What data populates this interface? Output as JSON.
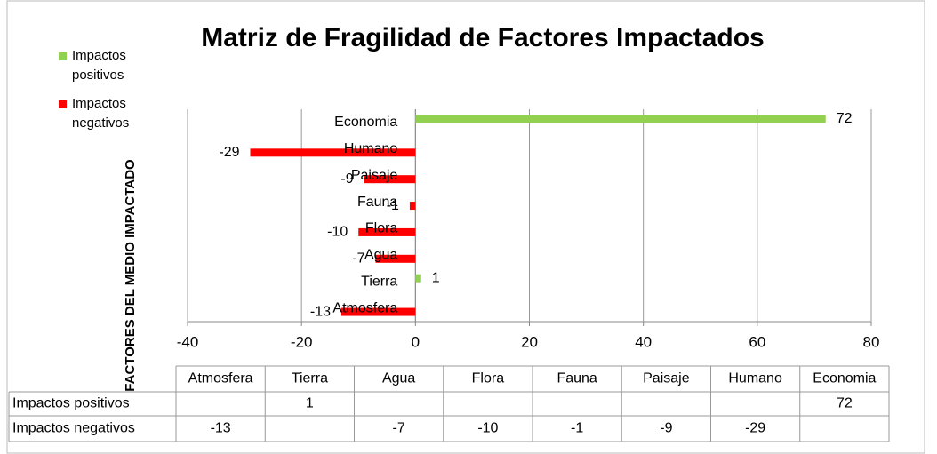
{
  "chart_data": {
    "type": "hbar",
    "title": "Matriz de Fragilidad de Factores Impactados",
    "ylabel": "FACTORES DEL MEDIO IMPACTADO",
    "categories": [
      "Atmosfera",
      "Tierra",
      "Agua",
      "Flora",
      "Fauna",
      "Paisaje",
      "Humano",
      "Economia"
    ],
    "series": [
      {
        "name": "Impactos positivos",
        "color": "#92d050",
        "values": [
          null,
          1,
          null,
          null,
          null,
          null,
          null,
          72
        ]
      },
      {
        "name": "Impactos negativos",
        "color": "#ff0000",
        "values": [
          -13,
          null,
          -7,
          -10,
          -1,
          -9,
          -29,
          null
        ]
      }
    ],
    "xlim": [
      -40,
      80
    ],
    "xticks": [
      -40,
      -20,
      0,
      20,
      40,
      60,
      80
    ],
    "grid": true,
    "legend": "top-left",
    "data_table": true
  }
}
